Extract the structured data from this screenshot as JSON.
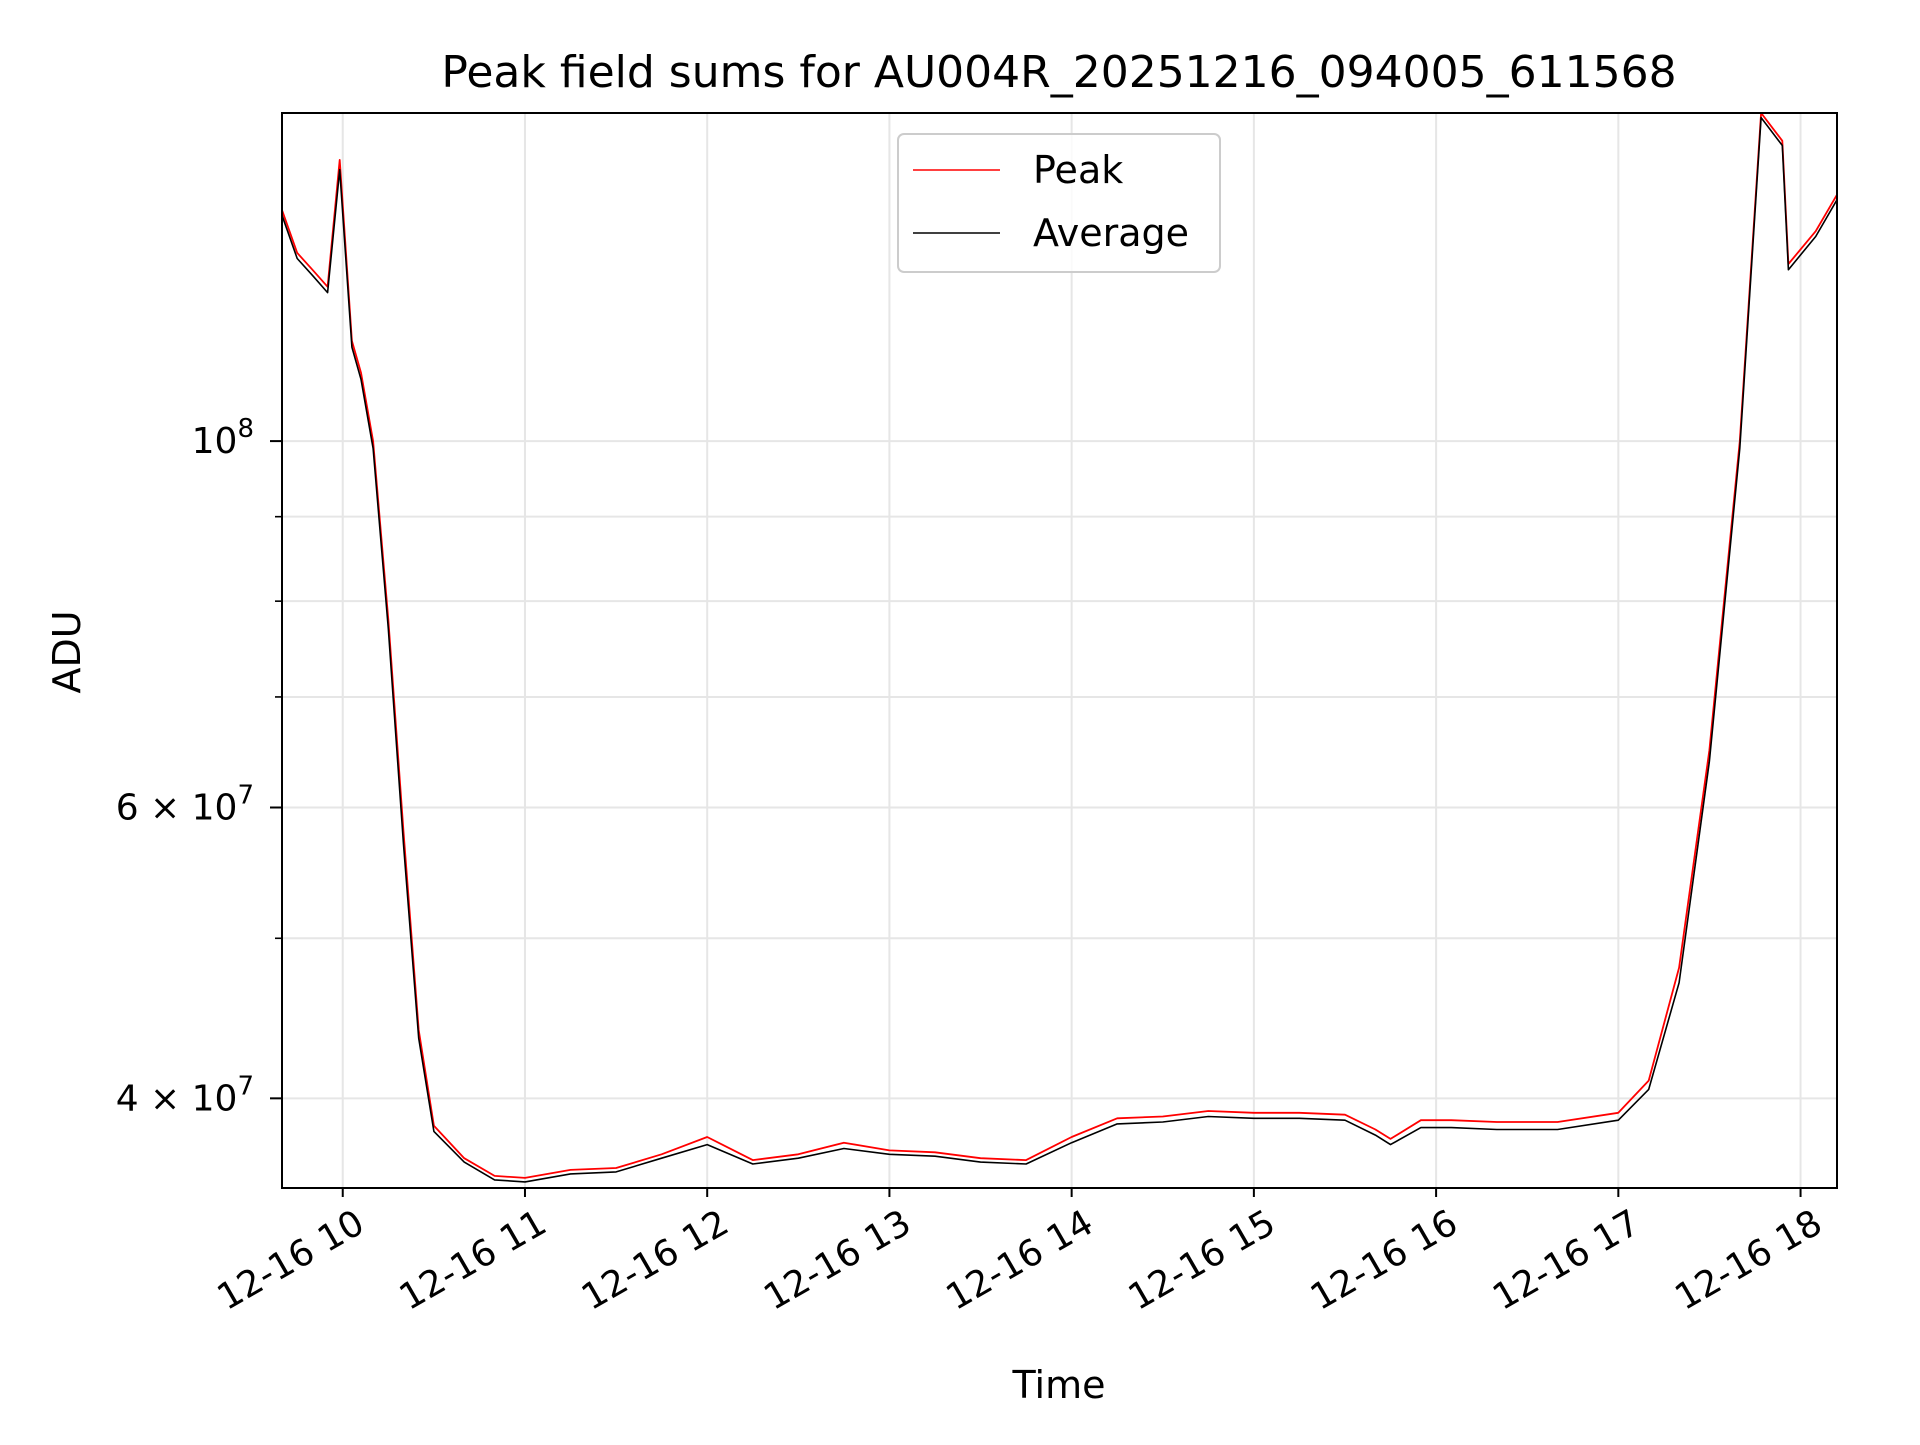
{
  "chart_data": {
    "type": "line",
    "title": "Peak field sums for AU004R_20251216_094005_611568",
    "xlabel": "Time",
    "ylabel": "ADU",
    "y_scale": "log",
    "grid": true,
    "legend_position": "top-center",
    "x_range": [
      "2025-12-16T09:40",
      "2025-12-16T18:12"
    ],
    "ylim": [
      35300000,
      158000000
    ],
    "x_tick_labels": [
      "12-16 10",
      "12-16 11",
      "12-16 12",
      "12-16 13",
      "12-16 14",
      "12-16 15",
      "12-16 16",
      "12-16 17",
      "12-16 18"
    ],
    "y_tick_labels": [
      {
        "value": 100000000,
        "base": "10",
        "exp": "8",
        "coeff": ""
      },
      {
        "value": 60000000,
        "base": "10",
        "exp": "7",
        "coeff": "6 × "
      },
      {
        "value": 40000000,
        "base": "10",
        "exp": "7",
        "coeff": "4 × "
      }
    ],
    "series": [
      {
        "name": "Peak",
        "color": "#ff0000",
        "points": [
          [
            "2025-12-16T09:40",
            138000000
          ],
          [
            "2025-12-16T09:45",
            130000000
          ],
          [
            "2025-12-16T09:50",
            127000000
          ],
          [
            "2025-12-16T09:55",
            124000000
          ],
          [
            "2025-12-16T09:59",
            148000000
          ],
          [
            "2025-12-16T10:03",
            115000000
          ],
          [
            "2025-12-16T10:06",
            110000000
          ],
          [
            "2025-12-16T10:10",
            100000000
          ],
          [
            "2025-12-16T10:15",
            78000000
          ],
          [
            "2025-12-16T10:20",
            58000000
          ],
          [
            "2025-12-16T10:25",
            44000000
          ],
          [
            "2025-12-16T10:30",
            38500000
          ],
          [
            "2025-12-16T10:40",
            36800000
          ],
          [
            "2025-12-16T10:50",
            35900000
          ],
          [
            "2025-12-16T11:00",
            35800000
          ],
          [
            "2025-12-16T11:15",
            36200000
          ],
          [
            "2025-12-16T11:30",
            36300000
          ],
          [
            "2025-12-16T11:45",
            37000000
          ],
          [
            "2025-12-16T12:00",
            37900000
          ],
          [
            "2025-12-16T12:15",
            36700000
          ],
          [
            "2025-12-16T12:30",
            37000000
          ],
          [
            "2025-12-16T12:45",
            37600000
          ],
          [
            "2025-12-16T13:00",
            37200000
          ],
          [
            "2025-12-16T13:15",
            37100000
          ],
          [
            "2025-12-16T13:30",
            36800000
          ],
          [
            "2025-12-16T13:45",
            36700000
          ],
          [
            "2025-12-16T14:00",
            37900000
          ],
          [
            "2025-12-16T14:15",
            38900000
          ],
          [
            "2025-12-16T14:30",
            39000000
          ],
          [
            "2025-12-16T14:45",
            39300000
          ],
          [
            "2025-12-16T15:00",
            39200000
          ],
          [
            "2025-12-16T15:15",
            39200000
          ],
          [
            "2025-12-16T15:30",
            39100000
          ],
          [
            "2025-12-16T15:40",
            38300000
          ],
          [
            "2025-12-16T15:45",
            37800000
          ],
          [
            "2025-12-16T15:55",
            38800000
          ],
          [
            "2025-12-16T16:05",
            38800000
          ],
          [
            "2025-12-16T16:20",
            38700000
          ],
          [
            "2025-12-16T16:40",
            38700000
          ],
          [
            "2025-12-16T17:00",
            39200000
          ],
          [
            "2025-12-16T17:10",
            41000000
          ],
          [
            "2025-12-16T17:20",
            48000000
          ],
          [
            "2025-12-16T17:30",
            65000000
          ],
          [
            "2025-12-16T17:40",
            100000000
          ],
          [
            "2025-12-16T17:47",
            158000000
          ],
          [
            "2025-12-16T17:54",
            152000000
          ],
          [
            "2025-12-16T17:56",
            128000000
          ],
          [
            "2025-12-16T18:05",
            134000000
          ],
          [
            "2025-12-16T18:12",
            141000000
          ]
        ]
      },
      {
        "name": "Average",
        "color": "#000000",
        "points": [
          [
            "2025-12-16T09:40",
            137000000
          ],
          [
            "2025-12-16T09:45",
            129000000
          ],
          [
            "2025-12-16T09:50",
            126000000
          ],
          [
            "2025-12-16T09:55",
            123000000
          ],
          [
            "2025-12-16T09:59",
            146000000
          ],
          [
            "2025-12-16T10:03",
            114000000
          ],
          [
            "2025-12-16T10:06",
            109000000
          ],
          [
            "2025-12-16T10:10",
            99000000
          ],
          [
            "2025-12-16T10:15",
            77000000
          ],
          [
            "2025-12-16T10:20",
            57000000
          ],
          [
            "2025-12-16T10:25",
            43500000
          ],
          [
            "2025-12-16T10:30",
            38200000
          ],
          [
            "2025-12-16T10:40",
            36600000
          ],
          [
            "2025-12-16T10:50",
            35700000
          ],
          [
            "2025-12-16T11:00",
            35600000
          ],
          [
            "2025-12-16T11:15",
            36000000
          ],
          [
            "2025-12-16T11:30",
            36100000
          ],
          [
            "2025-12-16T11:45",
            36800000
          ],
          [
            "2025-12-16T12:00",
            37500000
          ],
          [
            "2025-12-16T12:15",
            36500000
          ],
          [
            "2025-12-16T12:30",
            36800000
          ],
          [
            "2025-12-16T12:45",
            37300000
          ],
          [
            "2025-12-16T13:00",
            37000000
          ],
          [
            "2025-12-16T13:15",
            36900000
          ],
          [
            "2025-12-16T13:30",
            36600000
          ],
          [
            "2025-12-16T13:45",
            36500000
          ],
          [
            "2025-12-16T14:00",
            37600000
          ],
          [
            "2025-12-16T14:15",
            38600000
          ],
          [
            "2025-12-16T14:30",
            38700000
          ],
          [
            "2025-12-16T14:45",
            39000000
          ],
          [
            "2025-12-16T15:00",
            38900000
          ],
          [
            "2025-12-16T15:15",
            38900000
          ],
          [
            "2025-12-16T15:30",
            38800000
          ],
          [
            "2025-12-16T15:40",
            38000000
          ],
          [
            "2025-12-16T15:45",
            37500000
          ],
          [
            "2025-12-16T15:55",
            38400000
          ],
          [
            "2025-12-16T16:05",
            38400000
          ],
          [
            "2025-12-16T16:20",
            38300000
          ],
          [
            "2025-12-16T16:40",
            38300000
          ],
          [
            "2025-12-16T17:00",
            38800000
          ],
          [
            "2025-12-16T17:10",
            40500000
          ],
          [
            "2025-12-16T17:20",
            47000000
          ],
          [
            "2025-12-16T17:30",
            64000000
          ],
          [
            "2025-12-16T17:40",
            99000000
          ],
          [
            "2025-12-16T17:47",
            157000000
          ],
          [
            "2025-12-16T17:54",
            151000000
          ],
          [
            "2025-12-16T17:56",
            127000000
          ],
          [
            "2025-12-16T18:05",
            133000000
          ],
          [
            "2025-12-16T18:12",
            140000000
          ]
        ]
      }
    ]
  }
}
